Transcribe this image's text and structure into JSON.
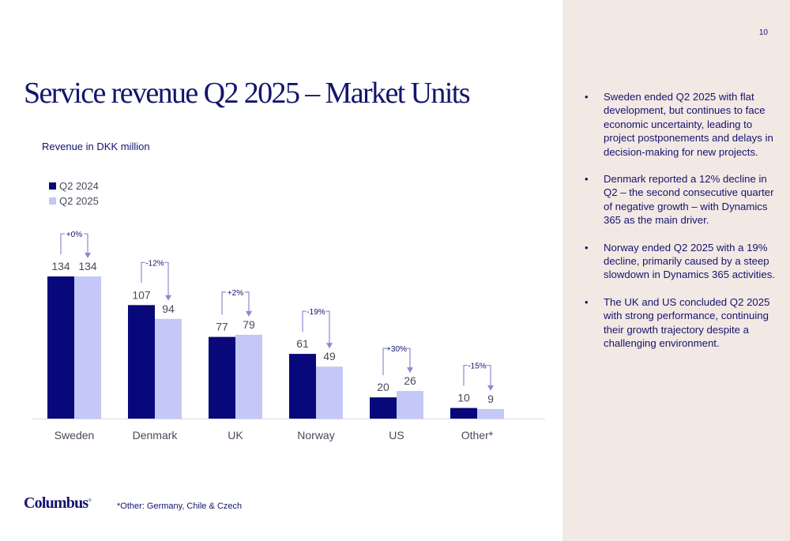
{
  "page": {
    "number": "10"
  },
  "title": "Service revenue Q2 2025 – Market Units",
  "colors": {
    "navy": "#08087a",
    "light": "#c3c8f7",
    "arrow": "#8a8bd0",
    "accent_bg": "#f3e9e4"
  },
  "chart_data": {
    "type": "bar",
    "ylabel": "Revenue in DKK million",
    "categories": [
      "Sweden",
      "Denmark",
      "UK",
      "Norway",
      "US",
      "Other*"
    ],
    "series": [
      {
        "name": "Q2 2024",
        "values": [
          134,
          107,
          77,
          61,
          20,
          10
        ],
        "color": "#08087a"
      },
      {
        "name": "Q2 2025",
        "values": [
          134,
          94,
          79,
          49,
          26,
          9
        ],
        "color": "#c3c8f7"
      }
    ],
    "changes": [
      "+0%",
      "-12%",
      "+2%",
      "-19%",
      "+30%",
      "-15%"
    ],
    "ylim": [
      0,
      134
    ],
    "grid": false,
    "legend": "top-left"
  },
  "bullets": [
    "Sweden ended Q2 2025 with flat development, but continues to face economic uncertainty, leading to project postponements and delays in decision-making for new projects.",
    "Denmark reported a 12% decline in Q2 – the second consecutive quarter of negative growth – with Dynamics 365 as the main driver.",
    "Norway ended Q2 2025 with a 19% decline, primarily caused by a steep slowdown in Dynamics 365 activities.",
    "The UK and US concluded Q2 2025 with strong performance, continuing their growth trajectory despite a challenging environment."
  ],
  "footer": {
    "logo": "Columbus",
    "logo_mark": "®",
    "footnote": "*Other: Germany, Chile & Czech"
  }
}
